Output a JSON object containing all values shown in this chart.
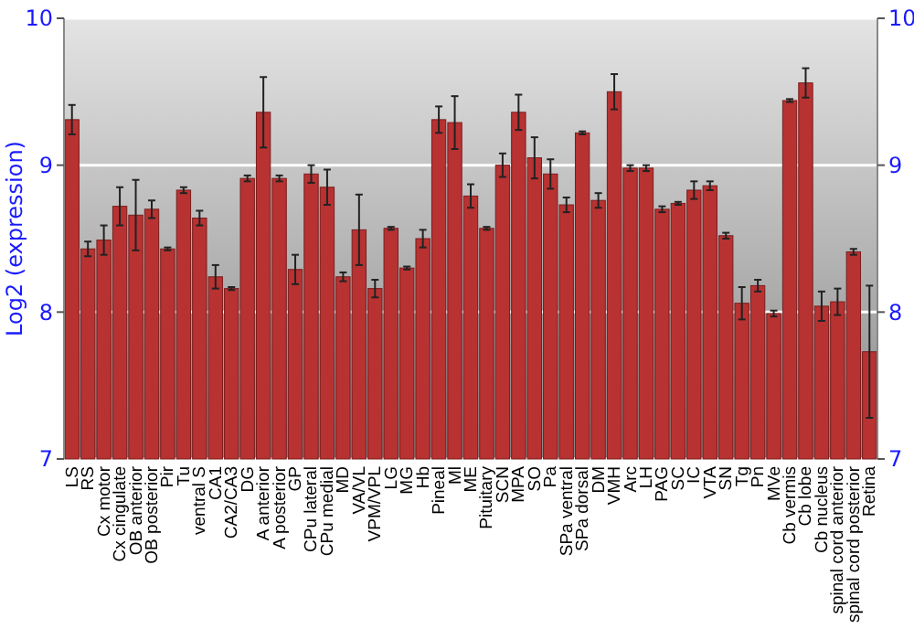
{
  "chart_data": {
    "type": "bar",
    "ylabel": "Log2 (expression)",
    "categories": [
      "LS",
      "RS",
      "Cx motor",
      "Cx cingulate",
      "OB anterior",
      "OB posterior",
      "Pir",
      "Tu",
      "ventral S",
      "CA1",
      "CA2/CA3",
      "DG",
      "A anterior",
      "A posterior",
      "GP",
      "CPu lateral",
      "CPu medial",
      "MD",
      "VA/VL",
      "VPM/VPL",
      "LG",
      "MG",
      "Hb",
      "Pineal",
      "Ml",
      "ME",
      "Pituitary",
      "SCN",
      "MPA",
      "SO",
      "Pa",
      "SPa ventral",
      "SPa dorsal",
      "DM",
      "VMH",
      "Arc",
      "LH",
      "PAG",
      "SC",
      "IC",
      "VTA",
      "SN",
      "Tg",
      "Pn",
      "MVe",
      "Cb vermis",
      "Cb lobe",
      "Cb nucleus",
      "spinal cord anterior",
      "spinal cord posterior",
      "Retina"
    ],
    "values": [
      9.31,
      8.43,
      8.49,
      8.72,
      8.66,
      8.7,
      8.43,
      8.83,
      8.64,
      8.24,
      8.16,
      8.91,
      9.36,
      8.91,
      8.29,
      8.94,
      8.85,
      8.24,
      8.56,
      8.16,
      8.57,
      8.3,
      8.5,
      9.31,
      9.29,
      8.79,
      8.57,
      9.0,
      9.36,
      9.05,
      8.94,
      8.73,
      9.22,
      8.76,
      9.5,
      8.98,
      8.98,
      8.7,
      8.74,
      8.83,
      8.86,
      8.52,
      8.06,
      8.18,
      7.99,
      9.44,
      9.56,
      8.04,
      8.07,
      8.41,
      7.73
    ],
    "errors": [
      0.1,
      0.05,
      0.1,
      0.13,
      0.24,
      0.06,
      0.01,
      0.02,
      0.05,
      0.08,
      0.01,
      0.02,
      0.24,
      0.02,
      0.1,
      0.06,
      0.12,
      0.03,
      0.24,
      0.06,
      0.01,
      0.01,
      0.06,
      0.09,
      0.18,
      0.08,
      0.01,
      0.08,
      0.12,
      0.14,
      0.1,
      0.05,
      0.01,
      0.05,
      0.12,
      0.02,
      0.02,
      0.02,
      0.01,
      0.06,
      0.03,
      0.02,
      0.11,
      0.04,
      0.02,
      0.01,
      0.1,
      0.1,
      0.09,
      0.02,
      0.45
    ],
    "color": "#b83232",
    "ylim": [
      7,
      10
    ],
    "yticks": [
      7,
      8,
      9,
      10
    ],
    "y2lim": [
      7,
      10
    ],
    "y2ticks": [
      7,
      8,
      9,
      10
    ],
    "grid": "y"
  }
}
